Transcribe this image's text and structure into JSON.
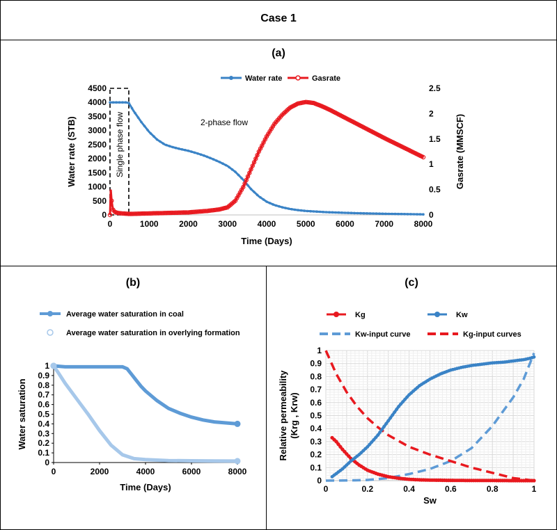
{
  "header": {
    "title": "Case 1"
  },
  "colors": {
    "water": "#3a83c6",
    "gas": "#e8191f",
    "sat_coal": "#5e9bd6",
    "sat_over": "#a7c8ea",
    "kw_input": "#5e9bd6",
    "kg_input": "#e8191f"
  },
  "chart_data": [
    {
      "id": "a",
      "panel_label": "(a)",
      "type": "line",
      "title": "(a)",
      "xlabel": "Time (Days)",
      "ylabel": "Water rate (STB)",
      "y2label": "Gasrate (MMSCF)",
      "xlim": [
        0,
        8000
      ],
      "ylim": [
        0,
        4500
      ],
      "y2lim": [
        0,
        2.5
      ],
      "xticks": [
        "0",
        "1000",
        "2000",
        "3000",
        "4000",
        "5000",
        "6000",
        "7000",
        "8000"
      ],
      "yticks": [
        "0",
        "500",
        "1000",
        "1500",
        "2000",
        "2500",
        "3000",
        "3500",
        "4000",
        "4500"
      ],
      "y2ticks": [
        "0",
        "0.5",
        "1",
        "1.5",
        "2",
        "2.5"
      ],
      "legend": [
        "Water rate",
        "Gasrate"
      ],
      "legend_position": "top",
      "annotations": {
        "single_phase": "Single phase flow",
        "two_phase": "2-phase flow"
      },
      "single_phase_box": {
        "x": [
          0,
          480
        ],
        "y": [
          0,
          5000
        ]
      },
      "series": [
        {
          "name": "Water rate",
          "axis": "left",
          "x": [
            0,
            100,
            200,
            300,
            400,
            480,
            600,
            800,
            1000,
            1200,
            1400,
            1600,
            1800,
            2000,
            2200,
            2400,
            2600,
            2800,
            3000,
            3200,
            3400,
            3600,
            3800,
            4000,
            4200,
            4400,
            4600,
            4800,
            5000,
            5500,
            6000,
            6500,
            7000,
            7500,
            8000
          ],
          "y": [
            4000,
            4000,
            4000,
            4000,
            4000,
            3980,
            3700,
            3300,
            2950,
            2680,
            2500,
            2410,
            2340,
            2280,
            2200,
            2110,
            2000,
            1880,
            1740,
            1530,
            1250,
            920,
            660,
            470,
            350,
            270,
            210,
            170,
            140,
            100,
            75,
            55,
            40,
            30,
            20
          ]
        },
        {
          "name": "Gasrate",
          "axis": "right",
          "x": [
            0,
            20,
            40,
            60,
            80,
            100,
            150,
            200,
            300,
            500,
            1000,
            1500,
            2000,
            2500,
            2800,
            3000,
            3200,
            3400,
            3600,
            3800,
            4000,
            4200,
            4400,
            4600,
            4800,
            5000,
            5200,
            5400,
            5600,
            6000,
            6500,
            7000,
            7500,
            8000
          ],
          "y": [
            0,
            0.5,
            0.28,
            0.18,
            0.1,
            0.07,
            0.05,
            0.04,
            0.03,
            0.02,
            0.03,
            0.04,
            0.05,
            0.08,
            0.11,
            0.15,
            0.28,
            0.55,
            0.9,
            1.25,
            1.55,
            1.8,
            1.98,
            2.12,
            2.2,
            2.23,
            2.21,
            2.15,
            2.08,
            1.92,
            1.72,
            1.52,
            1.33,
            1.14
          ]
        }
      ]
    },
    {
      "id": "b",
      "panel_label": "(b)",
      "type": "line",
      "title": "(b)",
      "xlabel": "Time (Days)",
      "ylabel": "Water saturation",
      "xlim": [
        0,
        8000
      ],
      "ylim": [
        0,
        1
      ],
      "xticks": [
        "0",
        "2000",
        "4000",
        "6000",
        "8000"
      ],
      "yticks": [
        "0",
        "0.1",
        "0.2",
        "0.3",
        "0.4",
        "0.5",
        "0.6",
        "0.7",
        "0.8",
        "0.9",
        "1"
      ],
      "legend": [
        "Average water saturation in coal",
        "Average water saturation in overlying formation"
      ],
      "legend_position": "top",
      "series": [
        {
          "name": "Average water saturation in coal",
          "x": [
            0,
            500,
            1000,
            1500,
            2000,
            2500,
            3000,
            3200,
            3400,
            3600,
            3800,
            4000,
            4500,
            5000,
            5500,
            6000,
            6500,
            7000,
            7500,
            8000
          ],
          "y": [
            1,
            0.99,
            0.99,
            0.99,
            0.99,
            0.99,
            0.99,
            0.97,
            0.91,
            0.85,
            0.79,
            0.74,
            0.64,
            0.56,
            0.51,
            0.47,
            0.44,
            0.42,
            0.41,
            0.4
          ]
        },
        {
          "name": "Average water saturation in overlying formation",
          "x": [
            0,
            200,
            500,
            1000,
            1500,
            2000,
            2500,
            3000,
            3500,
            4000,
            4500,
            5000,
            6000,
            7000,
            8000
          ],
          "y": [
            1,
            0.93,
            0.82,
            0.66,
            0.5,
            0.33,
            0.18,
            0.08,
            0.04,
            0.03,
            0.025,
            0.02,
            0.018,
            0.016,
            0.015
          ]
        }
      ]
    },
    {
      "id": "c",
      "panel_label": "(c)",
      "type": "line",
      "title": "(c)",
      "xlabel": "Sw",
      "ylabel": "Relative permeability (Krg , Krw)",
      "ylabel_lines": [
        "Relative permeability",
        "(Krg , Krw)"
      ],
      "xlim": [
        0,
        1
      ],
      "ylim": [
        0,
        1
      ],
      "xticks": [
        "0",
        "0.2",
        "0.4",
        "0.6",
        "0.8",
        "1"
      ],
      "yticks": [
        "0",
        "0.1",
        "0.2",
        "0.3",
        "0.4",
        "0.5",
        "0.6",
        "0.7",
        "0.8",
        "0.9",
        "1"
      ],
      "legend": [
        "Kg",
        "Kw",
        "Kw-input curve",
        "Kg-input curves"
      ],
      "legend_position": "top",
      "series": [
        {
          "name": "Kg",
          "style": "markers",
          "x": [
            0.03,
            0.05,
            0.08,
            0.12,
            0.16,
            0.2,
            0.25,
            0.3,
            0.35,
            0.4,
            0.45,
            0.5,
            0.6,
            0.7,
            0.8,
            0.9,
            1.0
          ],
          "y": [
            0.33,
            0.3,
            0.24,
            0.17,
            0.12,
            0.08,
            0.05,
            0.03,
            0.018,
            0.01,
            0.006,
            0.004,
            0.002,
            0.001,
            0.001,
            0.0,
            0.0
          ]
        },
        {
          "name": "Kw",
          "style": "markers",
          "x": [
            0.03,
            0.08,
            0.12,
            0.16,
            0.2,
            0.25,
            0.3,
            0.35,
            0.4,
            0.45,
            0.5,
            0.55,
            0.6,
            0.65,
            0.7,
            0.75,
            0.8,
            0.85,
            0.9,
            0.95,
            0.98,
            1.0
          ],
          "y": [
            0.03,
            0.09,
            0.15,
            0.2,
            0.26,
            0.35,
            0.46,
            0.57,
            0.66,
            0.73,
            0.78,
            0.82,
            0.85,
            0.87,
            0.885,
            0.895,
            0.905,
            0.91,
            0.92,
            0.93,
            0.94,
            0.95
          ]
        },
        {
          "name": "Kw-input curve",
          "style": "dashed",
          "x": [
            0,
            0.1,
            0.2,
            0.3,
            0.4,
            0.5,
            0.6,
            0.7,
            0.8,
            0.85,
            0.9,
            0.95,
            1.0
          ],
          "y": [
            0,
            0.001,
            0.005,
            0.02,
            0.05,
            0.09,
            0.15,
            0.25,
            0.42,
            0.53,
            0.64,
            0.78,
            0.98
          ]
        },
        {
          "name": "Kg-input curves",
          "style": "dashed",
          "x": [
            0,
            0.05,
            0.1,
            0.15,
            0.2,
            0.25,
            0.3,
            0.4,
            0.5,
            0.6,
            0.7,
            0.8,
            0.9,
            1.0
          ],
          "y": [
            1.0,
            0.82,
            0.68,
            0.57,
            0.48,
            0.41,
            0.35,
            0.26,
            0.2,
            0.15,
            0.1,
            0.06,
            0.02,
            0.0
          ]
        }
      ]
    }
  ]
}
